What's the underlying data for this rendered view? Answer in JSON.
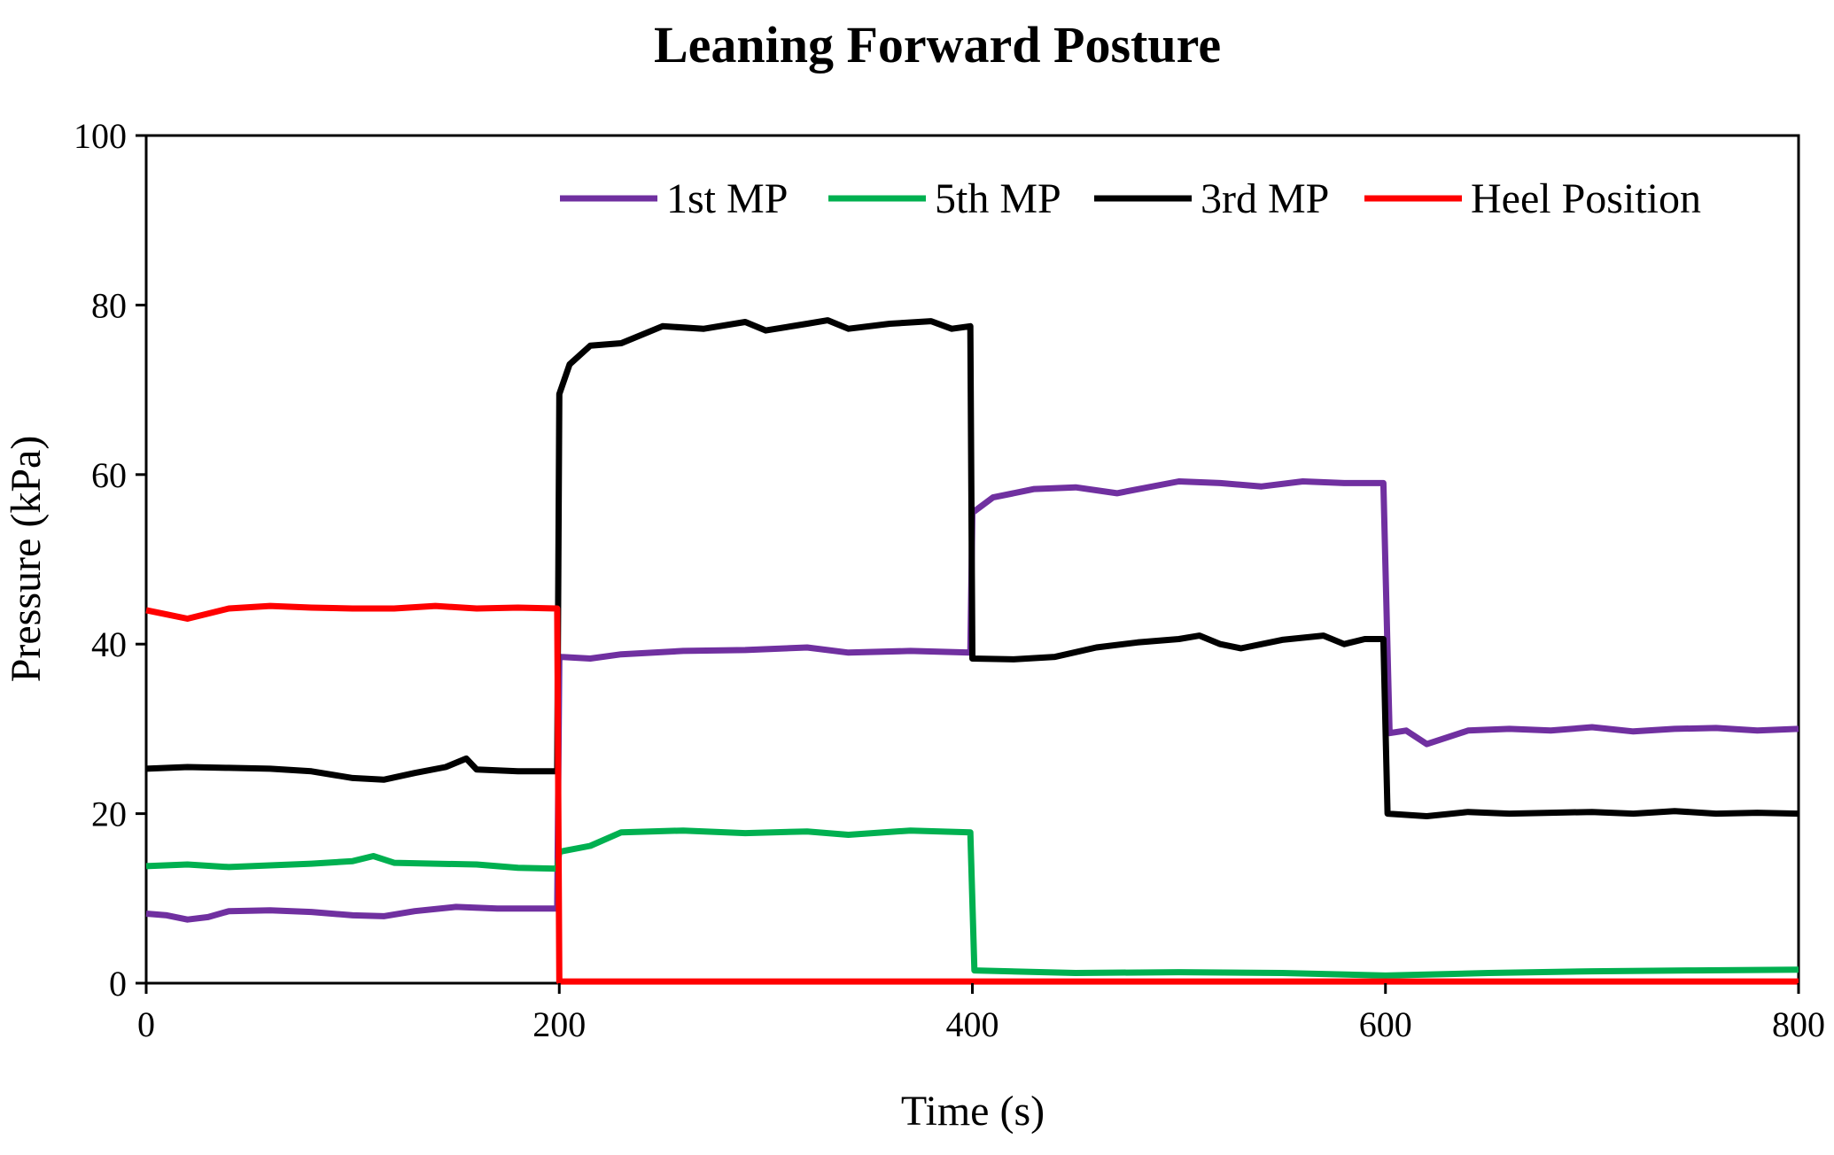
{
  "chart_data": {
    "type": "line",
    "title": "Leaning Forward Posture",
    "xlabel": "Time (s)",
    "ylabel": "Pressure (kPa)",
    "xlim": [
      0,
      800
    ],
    "ylim": [
      0,
      100
    ],
    "xticks": [
      0,
      200,
      400,
      600,
      800
    ],
    "yticks": [
      0,
      20,
      40,
      60,
      80,
      100
    ],
    "xtick_labels": [
      "0",
      "200",
      "400",
      "600",
      "800"
    ],
    "ytick_labels": [
      "0",
      "20",
      "40",
      "60",
      "80",
      "100"
    ],
    "grid": false,
    "legend_position": "top-right",
    "series": [
      {
        "name": "1st MP",
        "color": "#7030a0",
        "points": [
          [
            0,
            8.2
          ],
          [
            10,
            8.0
          ],
          [
            20,
            7.5
          ],
          [
            30,
            7.8
          ],
          [
            40,
            8.5
          ],
          [
            60,
            8.6
          ],
          [
            80,
            8.4
          ],
          [
            100,
            8.0
          ],
          [
            115,
            7.9
          ],
          [
            130,
            8.5
          ],
          [
            150,
            9.0
          ],
          [
            170,
            8.8
          ],
          [
            199,
            8.8
          ],
          [
            200,
            38.5
          ],
          [
            215,
            38.3
          ],
          [
            230,
            38.8
          ],
          [
            260,
            39.2
          ],
          [
            290,
            39.3
          ],
          [
            320,
            39.6
          ],
          [
            340,
            39.0
          ],
          [
            370,
            39.2
          ],
          [
            399,
            39.0
          ],
          [
            400,
            55.5
          ],
          [
            410,
            57.3
          ],
          [
            430,
            58.3
          ],
          [
            450,
            58.5
          ],
          [
            470,
            57.8
          ],
          [
            500,
            59.2
          ],
          [
            520,
            59.0
          ],
          [
            540,
            58.6
          ],
          [
            560,
            59.2
          ],
          [
            580,
            59.0
          ],
          [
            599,
            59.0
          ],
          [
            602,
            29.5
          ],
          [
            610,
            29.8
          ],
          [
            620,
            28.2
          ],
          [
            640,
            29.8
          ],
          [
            660,
            30.0
          ],
          [
            680,
            29.8
          ],
          [
            700,
            30.2
          ],
          [
            720,
            29.7
          ],
          [
            740,
            30.0
          ],
          [
            760,
            30.1
          ],
          [
            780,
            29.8
          ],
          [
            800,
            30.0
          ]
        ]
      },
      {
        "name": "5th MP",
        "color": "#00b050",
        "points": [
          [
            0,
            13.8
          ],
          [
            20,
            14.0
          ],
          [
            40,
            13.7
          ],
          [
            60,
            13.9
          ],
          [
            80,
            14.1
          ],
          [
            100,
            14.4
          ],
          [
            110,
            15.0
          ],
          [
            120,
            14.2
          ],
          [
            140,
            14.1
          ],
          [
            160,
            14.0
          ],
          [
            180,
            13.6
          ],
          [
            199,
            13.5
          ],
          [
            200,
            15.5
          ],
          [
            215,
            16.2
          ],
          [
            230,
            17.8
          ],
          [
            260,
            18.0
          ],
          [
            290,
            17.7
          ],
          [
            320,
            17.9
          ],
          [
            340,
            17.5
          ],
          [
            370,
            18.0
          ],
          [
            399,
            17.8
          ],
          [
            401,
            1.5
          ],
          [
            450,
            1.2
          ],
          [
            500,
            1.3
          ],
          [
            550,
            1.2
          ],
          [
            600,
            0.9
          ],
          [
            650,
            1.2
          ],
          [
            700,
            1.4
          ],
          [
            750,
            1.5
          ],
          [
            800,
            1.6
          ]
        ]
      },
      {
        "name": "3rd MP",
        "color": "#000000",
        "points": [
          [
            0,
            25.3
          ],
          [
            20,
            25.5
          ],
          [
            40,
            25.4
          ],
          [
            60,
            25.3
          ],
          [
            80,
            25.0
          ],
          [
            100,
            24.2
          ],
          [
            115,
            24.0
          ],
          [
            130,
            24.8
          ],
          [
            145,
            25.5
          ],
          [
            155,
            26.5
          ],
          [
            160,
            25.2
          ],
          [
            180,
            25.0
          ],
          [
            199,
            25.0
          ],
          [
            200,
            69.5
          ],
          [
            205,
            73.0
          ],
          [
            215,
            75.2
          ],
          [
            230,
            75.5
          ],
          [
            250,
            77.5
          ],
          [
            270,
            77.2
          ],
          [
            290,
            78.0
          ],
          [
            300,
            77.0
          ],
          [
            320,
            77.8
          ],
          [
            330,
            78.2
          ],
          [
            340,
            77.2
          ],
          [
            360,
            77.8
          ],
          [
            380,
            78.1
          ],
          [
            390,
            77.2
          ],
          [
            399,
            77.5
          ],
          [
            400,
            38.3
          ],
          [
            420,
            38.2
          ],
          [
            440,
            38.5
          ],
          [
            460,
            39.6
          ],
          [
            480,
            40.2
          ],
          [
            500,
            40.6
          ],
          [
            510,
            41.0
          ],
          [
            520,
            40.0
          ],
          [
            530,
            39.5
          ],
          [
            550,
            40.5
          ],
          [
            570,
            41.0
          ],
          [
            580,
            40.0
          ],
          [
            590,
            40.6
          ],
          [
            599,
            40.6
          ],
          [
            601,
            20.0
          ],
          [
            620,
            19.7
          ],
          [
            640,
            20.2
          ],
          [
            660,
            20.0
          ],
          [
            680,
            20.1
          ],
          [
            700,
            20.2
          ],
          [
            720,
            20.0
          ],
          [
            740,
            20.3
          ],
          [
            760,
            20.0
          ],
          [
            780,
            20.1
          ],
          [
            800,
            20.0
          ]
        ]
      },
      {
        "name": "Heel Position",
        "color": "#ff0000",
        "points": [
          [
            0,
            44.0
          ],
          [
            10,
            43.5
          ],
          [
            20,
            43.0
          ],
          [
            40,
            44.2
          ],
          [
            60,
            44.5
          ],
          [
            80,
            44.3
          ],
          [
            100,
            44.2
          ],
          [
            120,
            44.2
          ],
          [
            140,
            44.5
          ],
          [
            160,
            44.2
          ],
          [
            180,
            44.3
          ],
          [
            199,
            44.2
          ],
          [
            200,
            0.2
          ],
          [
            300,
            0.2
          ],
          [
            400,
            0.2
          ],
          [
            500,
            0.2
          ],
          [
            600,
            0.2
          ],
          [
            700,
            0.2
          ],
          [
            800,
            0.2
          ]
        ]
      }
    ]
  }
}
